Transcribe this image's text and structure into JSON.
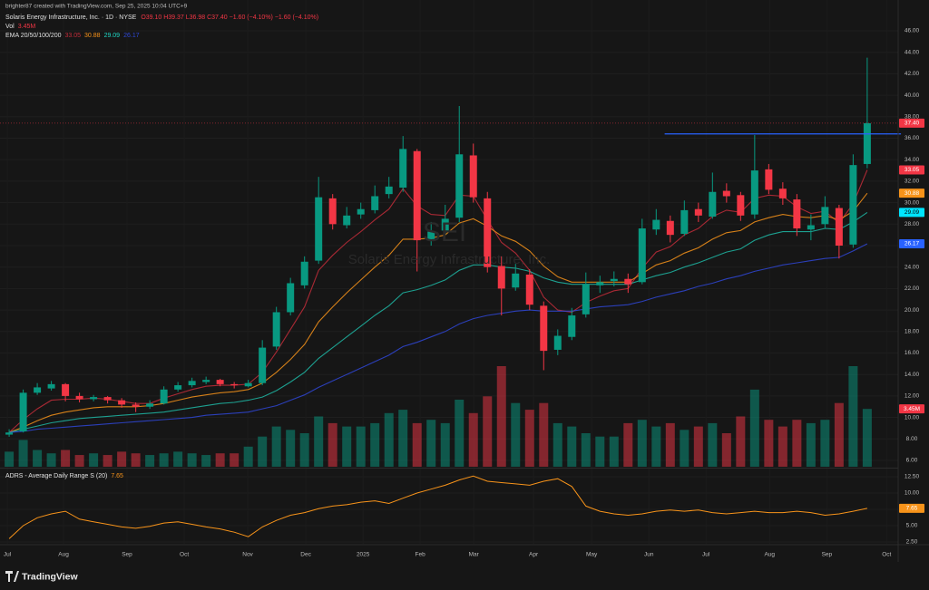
{
  "chart_data": [
    {
      "type": "candlestick",
      "header": {
        "author": "brighter87 created with TradingView.com, Sep 25, 2025 10:04 UTC+9",
        "symbol": "Solaris Energy Infrastructure, Inc. · 1D · NYSE",
        "ohlc": "O39.10 H39.37 L36.98 C37.40 −1.60 (−4.10%) −1.60 (−4.10%)",
        "vol_name": "Vol",
        "vol_value": "3.45M"
      },
      "watermark": {
        "ticker": "SEI",
        "name": "Solaris Energy Infrastructure, Inc."
      },
      "x": [
        0,
        1,
        2,
        3,
        4,
        5,
        6,
        7,
        8,
        9,
        10,
        11,
        12,
        13,
        14,
        15,
        16,
        17,
        18,
        19,
        20,
        21,
        22,
        23,
        24,
        25,
        26,
        27,
        28,
        29,
        30,
        31,
        32,
        33,
        34,
        35,
        36,
        37,
        38,
        39,
        40,
        41,
        42,
        43,
        44,
        45,
        46,
        47,
        48,
        49,
        50,
        51,
        52,
        53,
        54,
        55,
        56,
        57,
        58,
        59,
        60,
        61
      ],
      "open": [
        8.4,
        8.7,
        12.3,
        12.7,
        13.1,
        12.0,
        11.7,
        11.9,
        11.6,
        11.2,
        11.0,
        11.3,
        12.6,
        13.0,
        13.3,
        13.5,
        13.1,
        12.9,
        13.2,
        16.6,
        19.8,
        22.3,
        24.6,
        30.4,
        27.9,
        28.9,
        29.3,
        30.8,
        31.4,
        34.8,
        26.6,
        27.4,
        28.6,
        34.4,
        30.4,
        24.1,
        22.1,
        23.3,
        20.4,
        16.3,
        17.5,
        19.6,
        22.3,
        22.7,
        22.9,
        22.6,
        27.5,
        28.3,
        27.1,
        29.4,
        28.7,
        31.1,
        30.7,
        28.9,
        33.1,
        31.3,
        30.3,
        27.5,
        28.0,
        29.5,
        26.1,
        33.6
      ],
      "high": [
        8.9,
        12.6,
        13.2,
        13.4,
        13.2,
        12.3,
        12.1,
        12.0,
        11.8,
        11.4,
        11.6,
        12.9,
        13.3,
        13.7,
        13.8,
        13.6,
        13.3,
        13.5,
        17.2,
        20.3,
        23.0,
        25.0,
        32.4,
        30.8,
        29.6,
        30.0,
        31.6,
        32.4,
        36.2,
        35.0,
        28.2,
        29.8,
        39.0,
        35.5,
        31.0,
        25.0,
        24.3,
        23.8,
        20.8,
        18.2,
        20.2,
        23.5,
        23.2,
        23.6,
        23.4,
        28.5,
        29.4,
        28.8,
        30.2,
        30.0,
        32.8,
        31.8,
        31.0,
        36.3,
        33.6,
        31.9,
        30.8,
        28.9,
        30.6,
        29.8,
        34.5,
        43.5
      ],
      "low": [
        8.2,
        8.6,
        12.1,
        12.5,
        11.5,
        11.4,
        11.5,
        11.3,
        10.9,
        10.5,
        10.8,
        11.2,
        12.4,
        12.8,
        13.1,
        12.9,
        12.7,
        12.8,
        13.0,
        16.3,
        19.5,
        22.0,
        24.3,
        27.5,
        27.6,
        28.5,
        29.0,
        30.4,
        31.0,
        23.6,
        26.0,
        27.0,
        28.2,
        30.0,
        23.5,
        19.5,
        21.8,
        20.0,
        14.4,
        15.8,
        17.2,
        19.3,
        21.6,
        22.2,
        21.6,
        22.4,
        27.0,
        26.3,
        26.9,
        28.2,
        28.5,
        30.0,
        28.3,
        28.5,
        30.8,
        29.8,
        26.9,
        26.5,
        27.6,
        24.8,
        25.8,
        33.2
      ],
      "close": [
        8.6,
        12.3,
        12.8,
        13.1,
        12.0,
        11.7,
        11.9,
        11.6,
        11.2,
        11.0,
        11.3,
        12.6,
        13.0,
        13.4,
        13.5,
        13.1,
        13.0,
        13.2,
        16.5,
        19.8,
        22.5,
        24.5,
        30.5,
        28.0,
        28.8,
        29.4,
        30.6,
        31.5,
        35.0,
        26.5,
        27.3,
        28.5,
        34.5,
        30.5,
        24.0,
        22.0,
        23.4,
        20.5,
        16.2,
        17.6,
        19.5,
        22.4,
        22.6,
        22.9,
        22.4,
        27.6,
        28.4,
        27.0,
        29.3,
        28.8,
        31.0,
        30.6,
        28.8,
        33.0,
        31.2,
        30.4,
        27.6,
        27.9,
        29.6,
        26.0,
        33.5,
        37.4
      ],
      "close_label": "37.40",
      "volume": [
        0.9,
        1.6,
        1.0,
        0.8,
        1.0,
        0.7,
        0.8,
        0.7,
        0.9,
        0.8,
        0.7,
        0.8,
        0.9,
        0.8,
        0.7,
        0.8,
        0.8,
        1.2,
        1.8,
        2.4,
        2.2,
        2.0,
        3.0,
        2.6,
        2.4,
        2.4,
        2.6,
        3.2,
        3.4,
        2.6,
        2.8,
        2.6,
        4.0,
        3.2,
        4.2,
        6.0,
        3.8,
        3.4,
        3.8,
        2.6,
        2.4,
        2.0,
        1.8,
        1.8,
        2.6,
        2.8,
        2.4,
        2.6,
        2.2,
        2.4,
        2.6,
        2.0,
        3.0,
        4.6,
        2.8,
        2.4,
        2.8,
        2.6,
        2.8,
        3.8,
        6.0,
        3.45
      ],
      "volume_label": "3.45M",
      "up_color": "#089981",
      "down_color": "#f23645",
      "legend": "EMA 20/50/100/200",
      "series": [
        {
          "color": "#c22d3a",
          "last_label": "33.05",
          "values": [
            8.6,
            9.8,
            10.8,
            11.6,
            11.7,
            11.7,
            11.8,
            11.7,
            11.5,
            11.3,
            11.3,
            11.8,
            12.2,
            12.6,
            12.9,
            13.0,
            13.0,
            13.1,
            14.2,
            16.1,
            18.2,
            20.3,
            23.7,
            25.1,
            26.3,
            27.3,
            28.4,
            29.4,
            31.3,
            29.7,
            28.9,
            28.8,
            30.7,
            30.6,
            28.4,
            26.3,
            25.3,
            23.7,
            21.2,
            20.0,
            19.8,
            20.7,
            21.3,
            21.8,
            22.0,
            23.9,
            25.4,
            25.9,
            27.0,
            27.6,
            28.7,
            29.3,
            29.1,
            30.4,
            30.7,
            30.6,
            29.6,
            29.0,
            29.2,
            28.1,
            29.9,
            33.05
          ]
        },
        {
          "color": "#f7931a",
          "last_label": "30.88",
          "values": [
            8.6,
            9.1,
            9.7,
            10.2,
            10.5,
            10.7,
            10.9,
            11.0,
            11.0,
            11.0,
            11.1,
            11.3,
            11.6,
            11.9,
            12.1,
            12.3,
            12.4,
            12.6,
            13.2,
            14.2,
            15.4,
            16.8,
            18.9,
            20.3,
            21.6,
            22.8,
            24.0,
            25.1,
            26.6,
            26.6,
            26.7,
            27.0,
            28.1,
            28.5,
            27.8,
            26.9,
            26.4,
            25.5,
            24.1,
            23.1,
            22.6,
            22.6,
            22.6,
            22.6,
            22.6,
            23.4,
            24.2,
            24.6,
            25.3,
            25.8,
            26.6,
            27.2,
            27.4,
            28.2,
            28.6,
            28.9,
            28.7,
            28.6,
            28.8,
            28.4,
            29.2,
            30.88
          ]
        },
        {
          "color": "#1fb8a6",
          "last_label": "29.09",
          "values": [
            8.6,
            8.9,
            9.2,
            9.5,
            9.7,
            9.9,
            10.0,
            10.1,
            10.2,
            10.3,
            10.4,
            10.5,
            10.7,
            10.9,
            11.1,
            11.3,
            11.4,
            11.6,
            11.9,
            12.5,
            13.3,
            14.2,
            15.5,
            16.5,
            17.5,
            18.5,
            19.5,
            20.4,
            21.6,
            21.9,
            22.3,
            22.8,
            23.7,
            24.2,
            24.2,
            24.0,
            23.9,
            23.6,
            23.0,
            22.6,
            22.4,
            22.4,
            22.4,
            22.4,
            22.4,
            22.8,
            23.2,
            23.5,
            24.0,
            24.4,
            24.9,
            25.4,
            25.7,
            26.5,
            27.0,
            27.3,
            27.3,
            27.3,
            27.6,
            27.5,
            28.2,
            29.09
          ]
        },
        {
          "color": "#2f47d6",
          "last_label": "26.17",
          "values": [
            8.6,
            8.7,
            8.9,
            9.0,
            9.1,
            9.2,
            9.3,
            9.4,
            9.5,
            9.6,
            9.7,
            9.8,
            9.9,
            10.0,
            10.2,
            10.3,
            10.4,
            10.5,
            10.8,
            11.1,
            11.6,
            12.1,
            12.8,
            13.4,
            14.0,
            14.6,
            15.2,
            15.8,
            16.6,
            17.0,
            17.5,
            18.0,
            18.7,
            19.2,
            19.5,
            19.7,
            19.9,
            20.0,
            19.9,
            19.9,
            19.9,
            20.1,
            20.3,
            20.4,
            20.5,
            20.8,
            21.2,
            21.5,
            21.8,
            22.2,
            22.5,
            22.9,
            23.2,
            23.6,
            23.9,
            24.2,
            24.4,
            24.6,
            24.8,
            24.9,
            25.5,
            26.17
          ]
        }
      ],
      "tag_colors": [
        "#f23645",
        "#f23645",
        "#f7931a",
        "#00e5ff",
        "#2962ff"
      ],
      "hline": {
        "y": 36.4,
        "x": [
          46.6,
          63.4
        ],
        "color": "#2962ff"
      },
      "xlim": [
        -0.65,
        63.2
      ],
      "xticks": [
        {
          "value": -0.13,
          "label": "Jul"
        },
        {
          "value": 3.87,
          "label": "Aug"
        },
        {
          "value": 8.38,
          "label": "Sep"
        },
        {
          "value": 12.45,
          "label": "Oct"
        },
        {
          "value": 16.96,
          "label": "Nov"
        },
        {
          "value": 21.09,
          "label": "Dec"
        },
        {
          "value": 25.16,
          "label": "2025"
        },
        {
          "value": 29.22,
          "label": "Feb"
        },
        {
          "value": 33.03,
          "label": "Mar"
        },
        {
          "value": 37.28,
          "label": "Apr"
        },
        {
          "value": 41.41,
          "label": "May"
        },
        {
          "value": 45.48,
          "label": "Jun"
        },
        {
          "value": 49.54,
          "label": "Jul"
        },
        {
          "value": 54.06,
          "label": "Aug"
        },
        {
          "value": 58.13,
          "label": "Sep"
        },
        {
          "value": 62.38,
          "label": "Oct"
        }
      ],
      "ylim": [
        5.41,
        48.87
      ],
      "yticks": [
        {
          "value": 6,
          "label": "6.00"
        },
        {
          "value": 8,
          "label": "8.00"
        },
        {
          "value": 10,
          "label": "10.00"
        },
        {
          "value": 12,
          "label": "12.00"
        },
        {
          "value": 14,
          "label": "14.00"
        },
        {
          "value": 16,
          "label": "16.00"
        },
        {
          "value": 18,
          "label": "18.00"
        },
        {
          "value": 20,
          "label": "20.00"
        },
        {
          "value": 22,
          "label": "22.00"
        },
        {
          "value": 24,
          "label": "24.00"
        },
        {
          "value": 26,
          "label": "26.00"
        },
        {
          "value": 28,
          "label": "28.00"
        },
        {
          "value": 30,
          "label": "30.00"
        },
        {
          "value": 32,
          "label": "32.00"
        },
        {
          "value": 34,
          "label": "34.00"
        },
        {
          "value": 36,
          "label": "36.00"
        },
        {
          "value": 38,
          "label": "38.00"
        },
        {
          "value": 40,
          "label": "40.00"
        },
        {
          "value": 42,
          "label": "42.00"
        },
        {
          "value": 44,
          "label": "44.00"
        },
        {
          "value": 46,
          "label": "46.00"
        }
      ],
      "grid": true
    },
    {
      "type": "line",
      "legend": "ADRS - Average Daily Range S (20)",
      "series": [
        {
          "color": "#f7931a",
          "last_label": "7.65",
          "values": [
            3.0,
            5.0,
            6.2,
            6.8,
            7.2,
            6.0,
            5.6,
            5.2,
            4.8,
            4.6,
            4.9,
            5.4,
            5.6,
            5.2,
            4.8,
            4.5,
            4.0,
            3.3,
            4.8,
            5.8,
            6.6,
            7.0,
            7.6,
            8.0,
            8.2,
            8.6,
            8.8,
            8.4,
            9.2,
            10.0,
            10.6,
            11.2,
            12.0,
            12.6,
            11.8,
            11.6,
            11.4,
            11.2,
            11.8,
            12.2,
            11.0,
            8.0,
            7.2,
            6.8,
            6.6,
            6.8,
            7.2,
            7.4,
            7.2,
            7.4,
            7.0,
            6.8,
            7.0,
            7.2,
            7.0,
            7.0,
            7.2,
            7.0,
            6.6,
            6.8,
            7.2,
            7.65
          ]
        }
      ],
      "ylim": [
        2.22,
        13.61
      ],
      "yticks": [
        {
          "value": 2.5,
          "label": "2.50"
        },
        {
          "value": 5,
          "label": "5.00"
        },
        {
          "value": 7.5,
          "label": "7.50"
        },
        {
          "value": 10,
          "label": "10.00"
        },
        {
          "value": 12.5,
          "label": "12.50"
        }
      ],
      "grid": true
    },
    {
      "type": "footer",
      "brand": "TradingView"
    }
  ]
}
